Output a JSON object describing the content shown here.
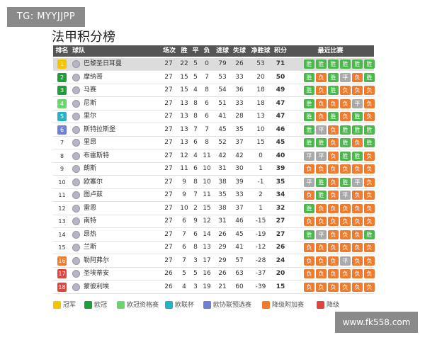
{
  "watermark": "TG: MYYJJPP",
  "site": "www.fk558.com",
  "title": "法甲积分榜",
  "table": {
    "header": [
      "排名",
      "球队",
      "场次",
      "胜",
      "平",
      "负",
      "进球",
      "失球",
      "净胜球",
      "积分",
      "最近比赛"
    ],
    "rows": [
      [
        1,
        "巴黎圣日耳曼",
        27,
        22,
        5,
        0,
        79,
        26,
        53,
        71,
        [
          "胜",
          "胜",
          "胜",
          "胜",
          "胜",
          "胜"
        ]
      ],
      [
        2,
        "摩纳哥",
        27,
        15,
        5,
        7,
        53,
        33,
        20,
        50,
        [
          "胜",
          "负",
          "胜",
          "平",
          "负",
          "胜"
        ]
      ],
      [
        3,
        "马赛",
        27,
        15,
        4,
        8,
        54,
        36,
        18,
        49,
        [
          "胜",
          "负",
          "胜",
          "负",
          "负",
          "负"
        ]
      ],
      [
        4,
        "尼斯",
        27,
        13,
        8,
        6,
        51,
        33,
        18,
        47,
        [
          "胜",
          "负",
          "负",
          "负",
          "平",
          "负"
        ]
      ],
      [
        5,
        "里尔",
        27,
        13,
        8,
        6,
        41,
        28,
        13,
        47,
        [
          "胜",
          "负",
          "胜",
          "负",
          "胜",
          "负"
        ]
      ],
      [
        6,
        "斯特拉斯堡",
        27,
        13,
        7,
        7,
        45,
        35,
        10,
        46,
        [
          "胜",
          "平",
          "负",
          "胜",
          "胜",
          "胜"
        ]
      ],
      [
        7,
        "里昂",
        27,
        13,
        6,
        8,
        52,
        37,
        15,
        45,
        [
          "胜",
          "胜",
          "负",
          "胜",
          "负",
          "胜"
        ]
      ],
      [
        8,
        "布雷斯特",
        27,
        12,
        4,
        11,
        42,
        42,
        0,
        40,
        [
          "平",
          "平",
          "负",
          "胜",
          "胜",
          "负"
        ]
      ],
      [
        9,
        "朗斯",
        27,
        11,
        6,
        10,
        31,
        30,
        1,
        39,
        [
          "负",
          "负",
          "负",
          "负",
          "负",
          "负"
        ]
      ],
      [
        10,
        "欧塞尔",
        27,
        9,
        8,
        10,
        38,
        39,
        -1,
        35,
        [
          "平",
          "胜",
          "负",
          "胜",
          "平",
          "负"
        ]
      ],
      [
        11,
        "图卢兹",
        27,
        9,
        7,
        11,
        35,
        33,
        2,
        34,
        [
          "负",
          "胜",
          "负",
          "平",
          "负",
          "负"
        ]
      ],
      [
        12,
        "雷恩",
        27,
        10,
        2,
        15,
        38,
        37,
        1,
        32,
        [
          "胜",
          "负",
          "负",
          "负",
          "负",
          "负"
        ]
      ],
      [
        13,
        "南特",
        27,
        6,
        9,
        12,
        31,
        46,
        -15,
        27,
        [
          "负",
          "负",
          "负",
          "负",
          "负",
          "负"
        ]
      ],
      [
        14,
        "昂热",
        27,
        7,
        6,
        14,
        26,
        45,
        -19,
        27,
        [
          "胜",
          "平",
          "负",
          "负",
          "负",
          "胜"
        ]
      ],
      [
        15,
        "兰斯",
        27,
        6,
        8,
        13,
        29,
        41,
        -12,
        26,
        [
          "负",
          "负",
          "负",
          "负",
          "负",
          "负"
        ]
      ],
      [
        16,
        "勒阿弗尔",
        27,
        7,
        3,
        17,
        29,
        57,
        -28,
        24,
        [
          "负",
          "负",
          "负",
          "平",
          "负",
          "负"
        ]
      ],
      [
        17,
        "圣埃蒂安",
        26,
        5,
        5,
        16,
        26,
        63,
        -37,
        20,
        [
          "负",
          "负",
          "负",
          "负",
          "负",
          "负"
        ]
      ],
      [
        18,
        "蒙彼利埃",
        26,
        4,
        3,
        19,
        21,
        60,
        -39,
        15,
        [
          "负",
          "负",
          "负",
          "负",
          "负",
          "负"
        ]
      ]
    ]
  },
  "legend": [
    "冠军",
    "欧冠",
    "欧冠资格赛",
    "欧联杯",
    "欧协联预选赛",
    "降级附加赛",
    "降级"
  ]
}
